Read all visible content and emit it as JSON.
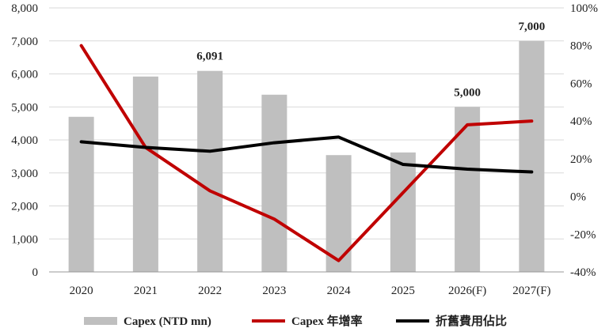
{
  "chart_data": {
    "type": "bar+line",
    "categories": [
      "2020",
      "2021",
      "2022",
      "2023",
      "2024",
      "2025",
      "2026(F)",
      "2027(F)"
    ],
    "bar_series": {
      "name": "Capex (NTD mn)",
      "values": [
        4700,
        5920,
        6091,
        5370,
        3540,
        3620,
        5000,
        7000
      ],
      "color": "#bfbfbf"
    },
    "line_series": [
      {
        "name": "Capex 年增率",
        "values": [
          80,
          26,
          3,
          -12,
          -34,
          2,
          38,
          40
        ],
        "color": "#c00000"
      },
      {
        "name": "折舊費用佔比",
        "values": [
          29,
          26,
          24,
          28.5,
          31.5,
          17,
          14.5,
          13
        ],
        "color": "#000000"
      }
    ],
    "data_labels": [
      {
        "index": 2,
        "text": "6,091"
      },
      {
        "index": 6,
        "text": "5,000"
      },
      {
        "index": 7,
        "text": "7,000"
      }
    ],
    "y_left": {
      "ylim": [
        0,
        8000
      ],
      "ticks": [
        0,
        1000,
        2000,
        3000,
        4000,
        5000,
        6000,
        7000,
        8000
      ],
      "tick_labels": [
        "0",
        "1,000",
        "2,000",
        "3,000",
        "4,000",
        "5,000",
        "6,000",
        "7,000",
        "8,000"
      ]
    },
    "y_right": {
      "ylim": [
        -40,
        100
      ],
      "ticks": [
        -40,
        -20,
        0,
        20,
        40,
        60,
        80,
        100
      ],
      "tick_labels": [
        "-40%",
        "-20%",
        "0%",
        "20%",
        "40%",
        "60%",
        "80%",
        "100%"
      ]
    },
    "gridlines": true,
    "legend_position": "bottom"
  }
}
